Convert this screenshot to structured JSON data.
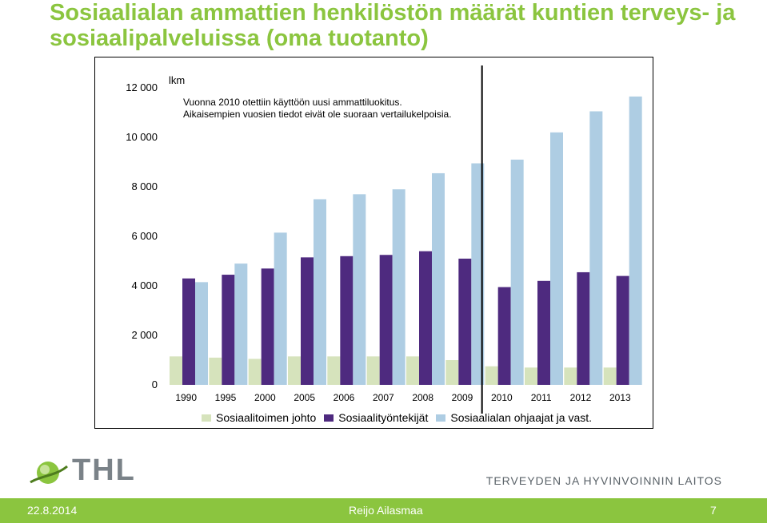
{
  "title": "Sosiaalialan ammattien henkilöstön määrät kuntien terveys- ja sosiaalipalveluissa (oma tuotanto)",
  "footer": {
    "date": "22.8.2014",
    "author": "Reijo Ailasmaa",
    "page": "7"
  },
  "logo_text": "THL",
  "org_name": "TERVEYDEN JA HYVINVOINNIN LAITOS",
  "colors": {
    "brand_green": "#8bc53f",
    "series_johto": "#d6e3bc",
    "series_tyontekijat": "#4e2a7f",
    "series_ohjaajat": "#aecde3"
  },
  "chart_data": {
    "type": "bar",
    "title": "",
    "ylabel": "lkm",
    "xlabel": "",
    "note_lines": [
      "Vuonna 2010 otettiin käyttöön uusi ammattiluokitus.",
      "Aikaisempien vuosien tiedot eivät ole suoraan vertailukelpoisia."
    ],
    "ylim": [
      0,
      12000
    ],
    "yticks": [
      "0",
      "2 000",
      "4 000",
      "6 000",
      "8 000",
      "10 000",
      "12 000"
    ],
    "ytick_values": [
      0,
      2000,
      4000,
      6000,
      8000,
      10000,
      12000
    ],
    "categories": [
      "1990",
      "1995",
      "2000",
      "2005",
      "2006",
      "2007",
      "2008",
      "2009",
      "2010",
      "2011",
      "2012",
      "2013"
    ],
    "series": [
      {
        "name": "Sosiaalitoimen johto",
        "color": "#d6e3bc",
        "values": [
          1150,
          1100,
          1050,
          1150,
          1150,
          1150,
          1150,
          1000,
          750,
          700,
          700,
          700
        ]
      },
      {
        "name": "Sosiaalityöntekijät",
        "color": "#4e2a7f",
        "values": [
          4300,
          4450,
          4700,
          5150,
          5200,
          5250,
          5400,
          5100,
          3950,
          4200,
          4550,
          4400
        ]
      },
      {
        "name": "Sosiaalialan ohjaajat ja vast.",
        "color": "#aecde3",
        "values": [
          4150,
          4900,
          6150,
          7500,
          7700,
          7900,
          8550,
          8950,
          9100,
          10200,
          11050,
          11650
        ]
      }
    ],
    "break_after_category": "2009",
    "grid": false,
    "legend_position": "bottom"
  }
}
